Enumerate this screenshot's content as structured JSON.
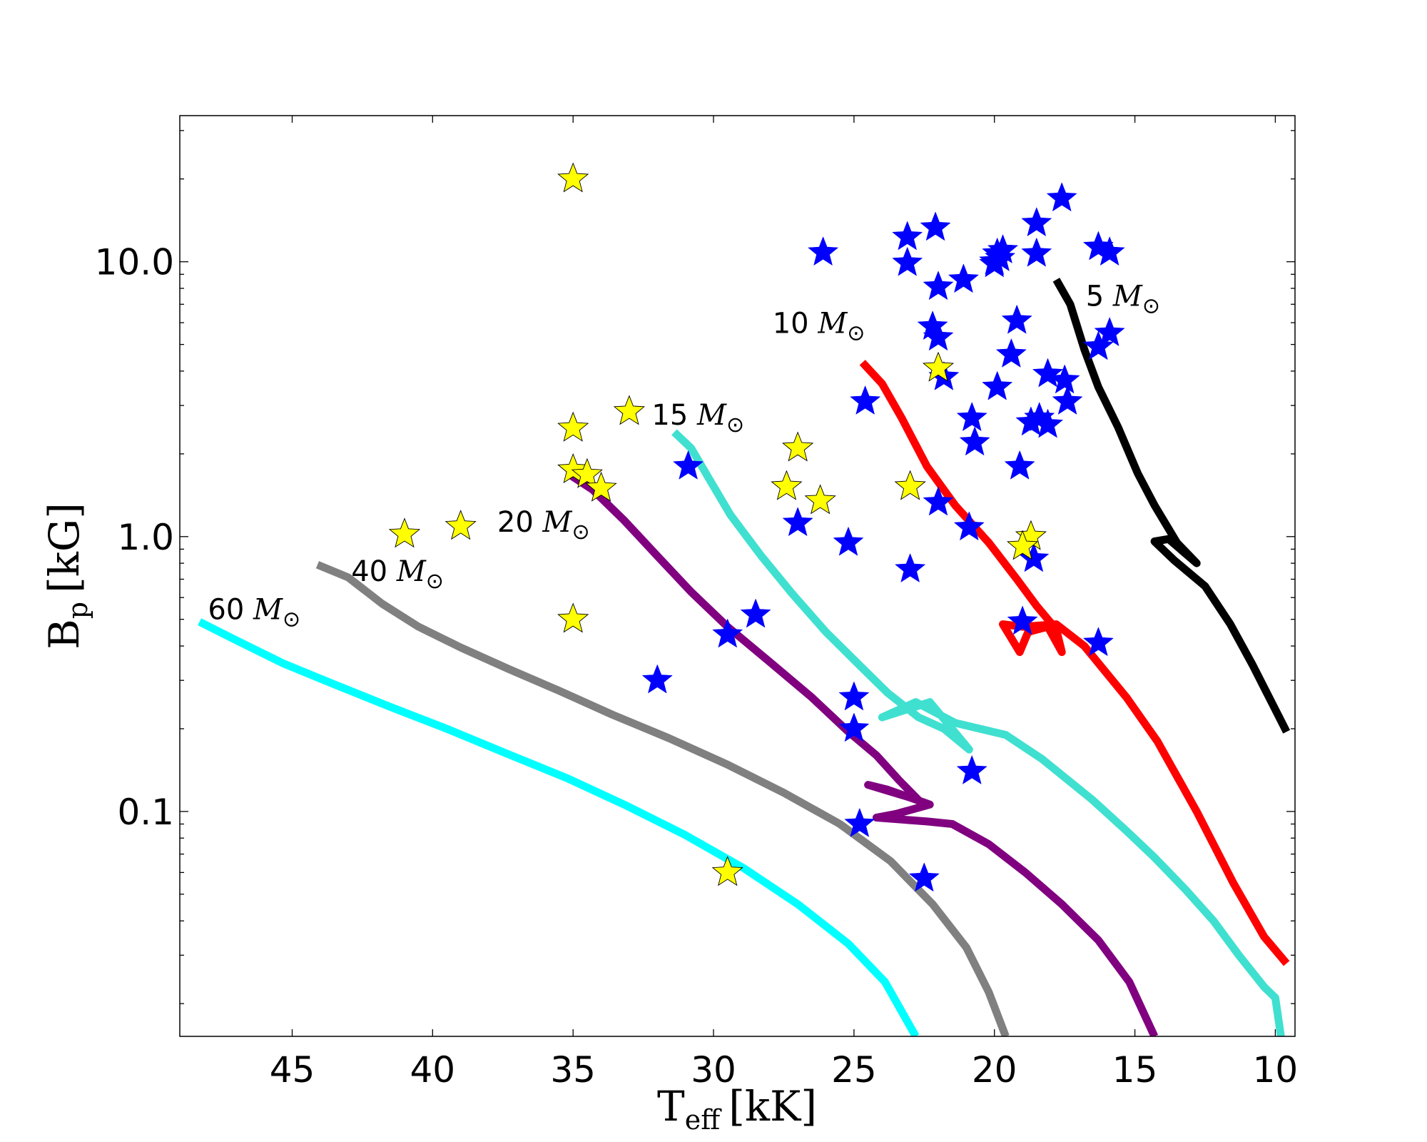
{
  "chart_data": {
    "type": "scatter",
    "title": "",
    "xlabel": "T",
    "xlabel_sub": "eff",
    "xlabel_unit": "[kK]",
    "ylabel": "B",
    "ylabel_sub": "p",
    "ylabel_unit": "[kG]",
    "x_inverted": true,
    "xlim": [
      49.0,
      9.3
    ],
    "ylim": [
      0.0152,
      34.0
    ],
    "yscale": "log",
    "x_ticks": [
      45,
      40,
      35,
      30,
      25,
      20,
      15,
      10
    ],
    "x_tick_labels": [
      "45",
      "40",
      "35",
      "30",
      "25",
      "20",
      "15",
      "10"
    ],
    "y_ticks": [
      0.1,
      1.0,
      10.0
    ],
    "y_tick_labels": [
      "0.1",
      "1.0",
      "10.0"
    ],
    "mass_symbol": "M",
    "mass_subscript": "⊙",
    "tracks": [
      {
        "label": "5",
        "color": "#000000",
        "label_pos": [
          16.75,
          6.9
        ],
        "points": [
          [
            17.8,
            8.6
          ],
          [
            17.3,
            7.0
          ],
          [
            16.8,
            4.8
          ],
          [
            16.3,
            3.5
          ],
          [
            15.6,
            2.5
          ],
          [
            14.9,
            1.7
          ],
          [
            14.3,
            1.3
          ],
          [
            13.5,
            0.95
          ],
          [
            12.8,
            0.8
          ],
          [
            13.8,
            0.98
          ],
          [
            14.3,
            0.96
          ],
          [
            13.6,
            0.82
          ],
          [
            12.5,
            0.66
          ],
          [
            11.6,
            0.48
          ],
          [
            10.8,
            0.34
          ],
          [
            9.6,
            0.195
          ]
        ]
      },
      {
        "label": "10",
        "color": "#ff0000",
        "label_pos": [
          27.9,
          5.5
        ],
        "points": [
          [
            24.7,
            4.3
          ],
          [
            24.0,
            3.6
          ],
          [
            23.3,
            2.7
          ],
          [
            22.4,
            1.8
          ],
          [
            21.4,
            1.3
          ],
          [
            20.2,
            0.95
          ],
          [
            19.2,
            0.7
          ],
          [
            18.5,
            0.56
          ],
          [
            17.8,
            0.46
          ],
          [
            17.6,
            0.38
          ],
          [
            18.1,
            0.47
          ],
          [
            18.8,
            0.45
          ],
          [
            19.1,
            0.38
          ],
          [
            19.7,
            0.48
          ],
          [
            19.0,
            0.47
          ],
          [
            17.8,
            0.48
          ],
          [
            16.8,
            0.4
          ],
          [
            15.3,
            0.26
          ],
          [
            14.2,
            0.18
          ],
          [
            12.8,
            0.1
          ],
          [
            11.5,
            0.055
          ],
          [
            10.4,
            0.035
          ],
          [
            9.6,
            0.028
          ]
        ]
      },
      {
        "label": "15",
        "color": "#40e0d0",
        "label_pos": [
          32.2,
          2.55
        ],
        "points": [
          [
            31.4,
            2.4
          ],
          [
            30.8,
            2.1
          ],
          [
            30.2,
            1.65
          ],
          [
            29.4,
            1.2
          ],
          [
            28.3,
            0.85
          ],
          [
            27.2,
            0.62
          ],
          [
            26.0,
            0.45
          ],
          [
            24.8,
            0.34
          ],
          [
            23.8,
            0.27
          ],
          [
            22.7,
            0.22
          ],
          [
            21.8,
            0.2
          ],
          [
            20.9,
            0.168
          ],
          [
            21.1,
            0.178
          ],
          [
            22.3,
            0.25
          ],
          [
            24.0,
            0.22
          ],
          [
            22.8,
            0.25
          ],
          [
            21.4,
            0.21
          ],
          [
            19.6,
            0.19
          ],
          [
            18.3,
            0.155
          ],
          [
            16.5,
            0.11
          ],
          [
            15.3,
            0.085
          ],
          [
            14.3,
            0.068
          ],
          [
            13.2,
            0.052
          ],
          [
            12.2,
            0.04
          ],
          [
            11.3,
            0.03
          ],
          [
            10.4,
            0.023
          ],
          [
            10.0,
            0.021
          ],
          [
            9.8,
            0.0152
          ]
        ]
      },
      {
        "label": "20",
        "color": "#800080",
        "label_pos": [
          37.7,
          1.04
        ],
        "points": [
          [
            35.2,
            1.7
          ],
          [
            34.3,
            1.48
          ],
          [
            33.2,
            1.15
          ],
          [
            32.0,
            0.85
          ],
          [
            30.8,
            0.63
          ],
          [
            29.5,
            0.47
          ],
          [
            28.0,
            0.35
          ],
          [
            26.5,
            0.26
          ],
          [
            25.2,
            0.195
          ],
          [
            24.2,
            0.16
          ],
          [
            23.4,
            0.13
          ],
          [
            22.7,
            0.11
          ],
          [
            24.5,
            0.125
          ],
          [
            23.8,
            0.12
          ],
          [
            22.3,
            0.106
          ],
          [
            23.5,
            0.098
          ],
          [
            24.2,
            0.095
          ],
          [
            22.4,
            0.092
          ],
          [
            21.5,
            0.09
          ],
          [
            20.2,
            0.076
          ],
          [
            18.9,
            0.06
          ],
          [
            17.6,
            0.046
          ],
          [
            16.3,
            0.034
          ],
          [
            15.2,
            0.024
          ],
          [
            14.3,
            0.0152
          ]
        ]
      },
      {
        "label": "40",
        "color": "#808080",
        "label_pos": [
          42.9,
          0.69
        ],
        "points": [
          [
            44.1,
            0.79
          ],
          [
            43.0,
            0.71
          ],
          [
            41.8,
            0.57
          ],
          [
            40.5,
            0.47
          ],
          [
            39.0,
            0.395
          ],
          [
            37.3,
            0.33
          ],
          [
            35.5,
            0.275
          ],
          [
            33.6,
            0.225
          ],
          [
            31.6,
            0.185
          ],
          [
            29.5,
            0.148
          ],
          [
            27.5,
            0.117
          ],
          [
            25.5,
            0.09
          ],
          [
            23.7,
            0.066
          ],
          [
            22.2,
            0.046
          ],
          [
            21.0,
            0.032
          ],
          [
            20.2,
            0.022
          ],
          [
            19.6,
            0.0152
          ]
        ]
      },
      {
        "label": "60",
        "color": "#00ffff",
        "label_pos": [
          48.0,
          0.5
        ],
        "points": [
          [
            48.3,
            0.49
          ],
          [
            47.0,
            0.42
          ],
          [
            45.3,
            0.345
          ],
          [
            43.5,
            0.29
          ],
          [
            41.5,
            0.24
          ],
          [
            39.5,
            0.2
          ],
          [
            37.4,
            0.163
          ],
          [
            35.2,
            0.132
          ],
          [
            33.1,
            0.105
          ],
          [
            31.0,
            0.082
          ],
          [
            28.9,
            0.062
          ],
          [
            27.0,
            0.046
          ],
          [
            25.2,
            0.033
          ],
          [
            23.9,
            0.024
          ],
          [
            22.8,
            0.0152
          ]
        ]
      }
    ],
    "series": [
      {
        "name": "blue stars",
        "color": "#0000ff",
        "marker": "star",
        "points": [
          [
            26.1,
            10.8
          ],
          [
            23.1,
            12.3
          ],
          [
            23.1,
            9.9
          ],
          [
            22.1,
            13.3
          ],
          [
            22.0,
            8.1
          ],
          [
            22.2,
            5.8
          ],
          [
            22.0,
            5.3
          ],
          [
            21.1,
            8.6
          ],
          [
            20.0,
            10.0
          ],
          [
            19.9,
            10.7
          ],
          [
            19.8,
            10.3
          ],
          [
            20.0,
            9.8
          ],
          [
            19.7,
            11.0
          ],
          [
            19.2,
            6.1
          ],
          [
            19.4,
            4.6
          ],
          [
            18.5,
            13.8
          ],
          [
            18.5,
            10.7
          ],
          [
            17.6,
            17.0
          ],
          [
            16.3,
            11.3
          ],
          [
            15.9,
            10.8
          ],
          [
            15.9,
            5.5
          ],
          [
            16.3,
            4.9
          ],
          [
            21.8,
            3.8
          ],
          [
            20.8,
            2.7
          ],
          [
            20.7,
            2.2
          ],
          [
            19.9,
            3.5
          ],
          [
            18.1,
            3.9
          ],
          [
            17.5,
            3.7
          ],
          [
            17.4,
            3.1
          ],
          [
            18.4,
            2.7
          ],
          [
            18.7,
            2.6
          ],
          [
            18.1,
            2.55
          ],
          [
            19.1,
            1.8
          ],
          [
            24.6,
            3.1
          ],
          [
            22.0,
            1.33
          ],
          [
            20.9,
            1.08
          ],
          [
            18.6,
            0.83
          ],
          [
            19.0,
            0.49
          ],
          [
            16.3,
            0.41
          ],
          [
            30.9,
            1.8
          ],
          [
            27.0,
            1.12
          ],
          [
            25.2,
            0.95
          ],
          [
            23.0,
            0.76
          ],
          [
            28.5,
            0.52
          ],
          [
            29.5,
            0.44
          ],
          [
            32.0,
            0.3
          ],
          [
            25.0,
            0.26
          ],
          [
            25.0,
            0.2
          ],
          [
            20.8,
            0.14
          ],
          [
            24.8,
            0.09
          ],
          [
            22.5,
            0.057
          ]
        ]
      },
      {
        "name": "yellow stars",
        "color": "#ffff00",
        "marker": "star",
        "points": [
          [
            35.0,
            20.0
          ],
          [
            33.0,
            2.85
          ],
          [
            35.0,
            2.48
          ],
          [
            35.0,
            1.75
          ],
          [
            34.5,
            1.68
          ],
          [
            34.0,
            1.5
          ],
          [
            27.0,
            2.1
          ],
          [
            27.4,
            1.52
          ],
          [
            26.2,
            1.35
          ],
          [
            23.0,
            1.52
          ],
          [
            22.0,
            4.1
          ],
          [
            18.7,
            1.0
          ],
          [
            19.0,
            0.92
          ],
          [
            41.0,
            1.02
          ],
          [
            39.0,
            1.09
          ],
          [
            35.0,
            0.5
          ],
          [
            29.5,
            0.06
          ]
        ]
      }
    ]
  }
}
